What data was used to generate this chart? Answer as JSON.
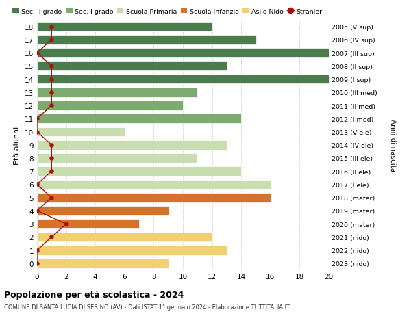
{
  "ages": [
    18,
    17,
    16,
    15,
    14,
    13,
    12,
    11,
    10,
    9,
    8,
    7,
    6,
    5,
    4,
    3,
    2,
    1,
    0
  ],
  "labels_right": [
    "2005 (V sup)",
    "2006 (IV sup)",
    "2007 (III sup)",
    "2008 (II sup)",
    "2009 (I sup)",
    "2010 (III med)",
    "2011 (II med)",
    "2012 (I med)",
    "2013 (V ele)",
    "2014 (IV ele)",
    "2015 (III ele)",
    "2016 (II ele)",
    "2017 (I ele)",
    "2018 (mater)",
    "2019 (mater)",
    "2020 (mater)",
    "2021 (nido)",
    "2022 (nido)",
    "2023 (nido)"
  ],
  "bar_values": [
    12,
    15,
    20,
    13,
    20,
    11,
    10,
    14,
    6,
    13,
    11,
    14,
    16,
    16,
    9,
    7,
    12,
    13,
    9
  ],
  "bar_colors": [
    "#4a7c4e",
    "#4a7c4e",
    "#4a7c4e",
    "#4a7c4e",
    "#4a7c4e",
    "#7daa6e",
    "#7daa6e",
    "#7daa6e",
    "#c8ddb0",
    "#c8ddb0",
    "#c8ddb0",
    "#c8ddb0",
    "#c8ddb0",
    "#d4732a",
    "#d4732a",
    "#d4732a",
    "#f0d070",
    "#f0d070",
    "#f0d070"
  ],
  "stranieri_values": [
    1,
    1,
    0,
    1,
    1,
    1,
    1,
    0,
    0,
    1,
    1,
    1,
    0,
    1,
    0,
    2,
    1,
    0,
    0
  ],
  "title": "Popolazione per età scolastica - 2024",
  "subtitle": "COMUNE DI SANTA LUCIA DI SERINO (AV) - Dati ISTAT 1° gennaio 2024 - Elaborazione TUTTITALIA.IT",
  "ylabel": "Età alunni",
  "ylabel_right": "Anni di nascita",
  "xlim": [
    0,
    20
  ],
  "xticks": [
    0,
    2,
    4,
    6,
    8,
    10,
    12,
    14,
    16,
    18,
    20
  ],
  "legend_items": [
    {
      "label": "Sec. II grado",
      "color": "#4a7c4e"
    },
    {
      "label": "Sec. I grado",
      "color": "#7daa6e"
    },
    {
      "label": "Scuola Primaria",
      "color": "#c8ddb0"
    },
    {
      "label": "Scuola Infanzia",
      "color": "#d4732a"
    },
    {
      "label": "Asilo Nido",
      "color": "#f0d070"
    },
    {
      "label": "Stranieri",
      "color": "#aa1111"
    }
  ],
  "bg_color": "#ffffff",
  "grid_color": "#cccccc",
  "bar_height": 0.72
}
